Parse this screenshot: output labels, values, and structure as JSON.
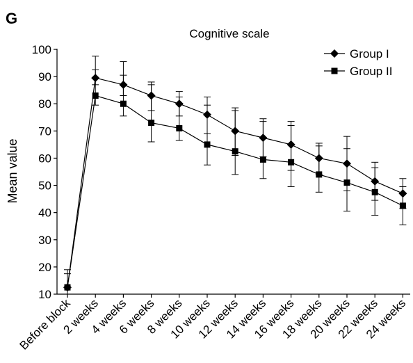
{
  "panel_label": "G",
  "chart_data": {
    "type": "line",
    "title": "Cognitive scale",
    "xlabel": "",
    "ylabel": "Mean value",
    "ylim": [
      10,
      100
    ],
    "yticks": [
      10,
      20,
      30,
      40,
      50,
      60,
      70,
      80,
      90,
      100
    ],
    "categories": [
      "Before block",
      "2 weeks",
      "4 weeks",
      "6 weeks",
      "8 weeks",
      "10 weeks",
      "12 weeks",
      "14 weeks",
      "16 weeks",
      "18 weeks",
      "20 weeks",
      "22 weeks",
      "24 weeks"
    ],
    "grid": false,
    "legend_position": "top-right",
    "series": [
      {
        "name": "Group I",
        "marker": "diamond",
        "values": [
          12.5,
          89.5,
          87,
          83,
          80,
          76,
          70,
          67.5,
          65,
          60,
          58,
          51.5,
          47
        ],
        "error_upper": [
          19,
          97.5,
          95.5,
          88,
          84.5,
          82.5,
          78.5,
          74.5,
          73.5,
          65.5,
          68,
          58.5,
          52.5
        ],
        "error_lower": [
          10,
          87,
          83,
          77.5,
          75.5,
          69,
          61,
          60.5,
          55.5,
          54,
          48,
          44.5,
          41.5
        ]
      },
      {
        "name": "Group II",
        "marker": "square",
        "values": [
          12.5,
          83,
          80,
          73,
          71,
          65,
          62.5,
          59.5,
          58.5,
          54,
          51,
          47.5,
          42.5
        ],
        "error_upper": [
          17.5,
          92.5,
          90.5,
          87,
          82.5,
          79.5,
          77.5,
          73.5,
          72,
          64.5,
          63.5,
          56.5,
          49.5
        ],
        "error_lower": [
          10,
          79.5,
          75.5,
          66,
          66.5,
          57.5,
          54,
          52.5,
          49.5,
          47.5,
          40.5,
          39,
          35.5
        ]
      }
    ]
  }
}
